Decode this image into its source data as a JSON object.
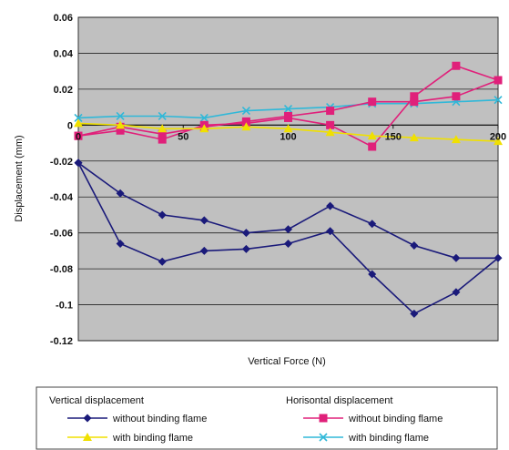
{
  "chart_data": {
    "type": "line",
    "xlabel": "Vertical Force (N)",
    "ylabel": "Displacement (mm)",
    "xlim": [
      0,
      200
    ],
    "ylim": [
      -0.12,
      0.06
    ],
    "x_ticks": [
      "50",
      "100",
      "150",
      "200"
    ],
    "y_ticks": [
      "0.06",
      "0.04",
      "0.02",
      "0",
      "-0.02",
      "-0.04",
      "-0.06",
      "-0.08",
      "-0.1",
      "-0.12"
    ],
    "x_origin_label": "0",
    "grid": true,
    "legend_position": "bottom",
    "legend_groups": [
      {
        "title": "Vertical displacement",
        "series": [
          0,
          1
        ]
      },
      {
        "title": "Horisontal displacement",
        "series": [
          2,
          3
        ]
      }
    ],
    "series": [
      {
        "name": "without binding flame",
        "color": "#1a1a7a",
        "marker": "diamond",
        "points": [
          [
            0,
            -0.021
          ],
          [
            20,
            -0.066
          ],
          [
            40,
            -0.076
          ],
          [
            60,
            -0.07
          ],
          [
            80,
            -0.069
          ],
          [
            100,
            -0.066
          ],
          [
            120,
            -0.059
          ],
          [
            140,
            -0.083
          ],
          [
            160,
            -0.105
          ],
          [
            180,
            -0.093
          ],
          [
            200,
            -0.074
          ],
          [
            180,
            -0.074
          ],
          [
            160,
            -0.067
          ],
          [
            140,
            -0.055
          ],
          [
            120,
            -0.045
          ],
          [
            100,
            -0.058
          ],
          [
            80,
            -0.06
          ],
          [
            60,
            -0.053
          ],
          [
            40,
            -0.05
          ],
          [
            20,
            -0.038
          ],
          [
            0,
            -0.021
          ]
        ]
      },
      {
        "name": "with binding flame",
        "color": "#f0e000",
        "marker": "triangle",
        "points": [
          [
            0,
            0.001
          ],
          [
            20,
            0.0
          ],
          [
            40,
            -0.002
          ],
          [
            60,
            -0.002
          ],
          [
            80,
            -0.001
          ],
          [
            100,
            -0.002
          ],
          [
            120,
            -0.004
          ],
          [
            140,
            -0.006
          ],
          [
            160,
            -0.007
          ],
          [
            180,
            -0.008
          ],
          [
            200,
            -0.009
          ]
        ]
      },
      {
        "name": "without binding flame",
        "color": "#e0207a",
        "marker": "square",
        "points": [
          [
            0,
            -0.006
          ],
          [
            20,
            -0.003
          ],
          [
            40,
            -0.008
          ],
          [
            60,
            0.0
          ],
          [
            80,
            0.001
          ],
          [
            100,
            0.004
          ],
          [
            120,
            0.0
          ],
          [
            140,
            -0.012
          ],
          [
            160,
            0.016
          ],
          [
            180,
            0.033
          ],
          [
            200,
            0.025
          ],
          [
            180,
            0.016
          ],
          [
            160,
            0.013
          ],
          [
            140,
            0.013
          ],
          [
            120,
            0.008
          ],
          [
            100,
            0.005
          ],
          [
            80,
            0.002
          ],
          [
            60,
            -0.001
          ],
          [
            40,
            -0.005
          ],
          [
            20,
            -0.001
          ],
          [
            0,
            -0.006
          ]
        ]
      },
      {
        "name": "with binding flame",
        "color": "#30b8d8",
        "marker": "x",
        "points": [
          [
            0,
            0.004
          ],
          [
            20,
            0.005
          ],
          [
            40,
            0.005
          ],
          [
            60,
            0.004
          ],
          [
            80,
            0.008
          ],
          [
            100,
            0.009
          ],
          [
            120,
            0.01
          ],
          [
            140,
            0.012
          ],
          [
            160,
            0.012
          ],
          [
            180,
            0.013
          ],
          [
            200,
            0.014
          ]
        ]
      }
    ]
  }
}
